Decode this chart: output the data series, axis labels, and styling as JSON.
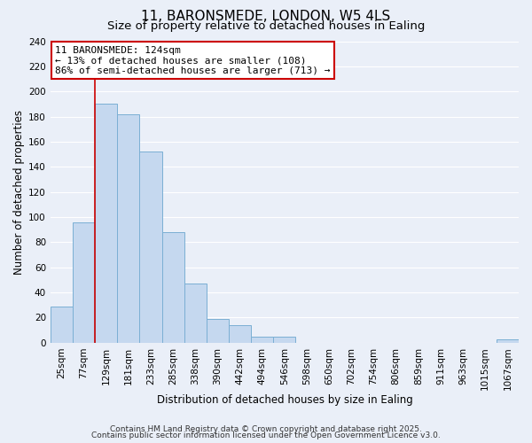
{
  "title": "11, BARONSMEDE, LONDON, W5 4LS",
  "subtitle": "Size of property relative to detached houses in Ealing",
  "xlabel": "Distribution of detached houses by size in Ealing",
  "ylabel": "Number of detached properties",
  "bin_labels": [
    "25sqm",
    "77sqm",
    "129sqm",
    "181sqm",
    "233sqm",
    "285sqm",
    "338sqm",
    "390sqm",
    "442sqm",
    "494sqm",
    "546sqm",
    "598sqm",
    "650sqm",
    "702sqm",
    "754sqm",
    "806sqm",
    "859sqm",
    "911sqm",
    "963sqm",
    "1015sqm",
    "1067sqm"
  ],
  "bar_heights": [
    29,
    96,
    190,
    182,
    152,
    88,
    47,
    19,
    14,
    5,
    5,
    0,
    0,
    0,
    0,
    0,
    0,
    0,
    0,
    0,
    3
  ],
  "bar_color": "#c5d8ef",
  "bar_edge_color": "#7bafd4",
  "vline_x_bar_index": 2,
  "vline_color": "#cc0000",
  "annotation_line1": "11 BARONSMEDE: 124sqm",
  "annotation_line2": "← 13% of detached houses are smaller (108)",
  "annotation_line3": "86% of semi-detached houses are larger (713) →",
  "ylim": [
    0,
    240
  ],
  "yticks": [
    0,
    20,
    40,
    60,
    80,
    100,
    120,
    140,
    160,
    180,
    200,
    220,
    240
  ],
  "footer_line1": "Contains HM Land Registry data © Crown copyright and database right 2025.",
  "footer_line2": "Contains public sector information licensed under the Open Government Licence v3.0.",
  "background_color": "#eaeff8",
  "grid_color": "#ffffff",
  "title_fontsize": 11,
  "subtitle_fontsize": 9.5,
  "axis_label_fontsize": 8.5,
  "tick_fontsize": 7.5,
  "annotation_fontsize": 8,
  "footer_fontsize": 6.5
}
